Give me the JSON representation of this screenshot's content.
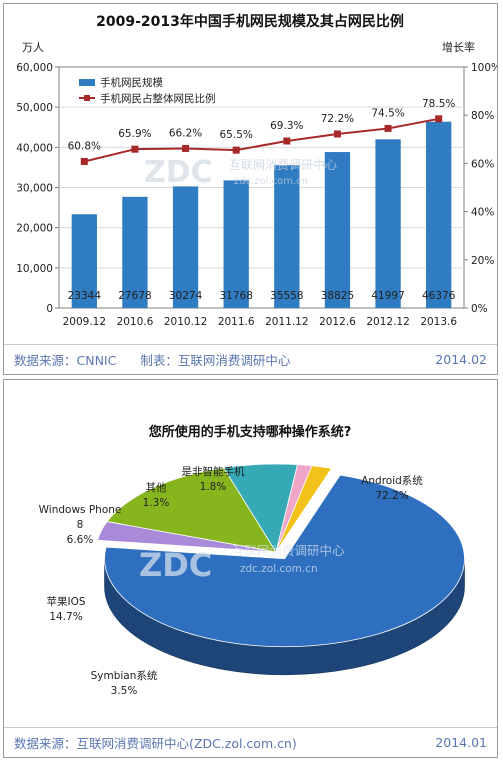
{
  "colors": {
    "bar": "#2f7cc2",
    "line": "#a62a2a",
    "footer_text": "#5b76b0",
    "watermark": "#bcc7d6",
    "pie_android": "#2f6fc0",
    "pie_symbian": "#a98ad9",
    "pie_ios": "#86b51e",
    "pie_wp": "#36a9b6",
    "pie_other": "#f0a6c8",
    "pie_nonsmart": "#f2c21b"
  },
  "top": {
    "footer_source": "数据来源：CNNIC",
    "footer_maker": "制表：互联网消费调研中心",
    "footer_date": "2014.02"
  },
  "bottom": {
    "footer_source": "数据来源：互联网消费调研中心(ZDC.zol.com.cn)",
    "footer_date": "2014.01"
  },
  "watermark": {
    "logo": "ZDC",
    "line1": "互联网消费调研中心",
    "line2": "zdc.zol.com.cn"
  },
  "chart_data": [
    {
      "type": "bar",
      "title": "2009-2013年中国手机网民规模及其占网民比例",
      "ylabel": "万人",
      "y2label": "增长率",
      "categories": [
        "2009.12",
        "2010.6",
        "2010.12",
        "2011.6",
        "2011.12",
        "2012.6",
        "2012.12",
        "2013.6"
      ],
      "ylim": [
        0,
        60000
      ],
      "yticks": [
        "0",
        "10,000",
        "20,000",
        "30,000",
        "40,000",
        "50,000",
        "60,000"
      ],
      "y2lim": [
        0,
        100
      ],
      "y2ticks": [
        "0%",
        "20%",
        "40%",
        "60%",
        "80%",
        "100%"
      ],
      "legend_position": "top-left",
      "series": [
        {
          "name": "手机网民规模",
          "type": "bar",
          "values": [
            23344,
            27678,
            30274,
            31768,
            35558,
            38825,
            41997,
            46376
          ],
          "labels": [
            "23344",
            "27678",
            "30274",
            "31768",
            "35558",
            "38825",
            "41997",
            "46376"
          ]
        },
        {
          "name": "手机网民占整体网民比例",
          "type": "line",
          "axis": "right",
          "values": [
            60.8,
            65.9,
            66.2,
            65.5,
            69.3,
            72.2,
            74.5,
            78.5
          ],
          "labels": [
            "60.8%",
            "65.9%",
            "66.2%",
            "65.5%",
            "69.3%",
            "72.2%",
            "74.5%",
            "78.5%"
          ]
        }
      ]
    },
    {
      "type": "pie",
      "title": "您所使用的手机支持哪种操作系统?",
      "slices": [
        {
          "name": "Android系统",
          "value": 72.2,
          "label": "72.2%"
        },
        {
          "name": "Symbian系统",
          "value": 3.5,
          "label": "3.5%"
        },
        {
          "name": "苹果IOS",
          "value": 14.7,
          "label": "14.7%"
        },
        {
          "name": "Windows Phone 8",
          "name_line1": "Windows Phone",
          "name_line2": "8",
          "value": 6.6,
          "label": "6.6%"
        },
        {
          "name": "其他",
          "value": 1.3,
          "label": "1.3%"
        },
        {
          "name": "是非智能手机",
          "value": 1.8,
          "label": "1.8%"
        }
      ]
    }
  ]
}
